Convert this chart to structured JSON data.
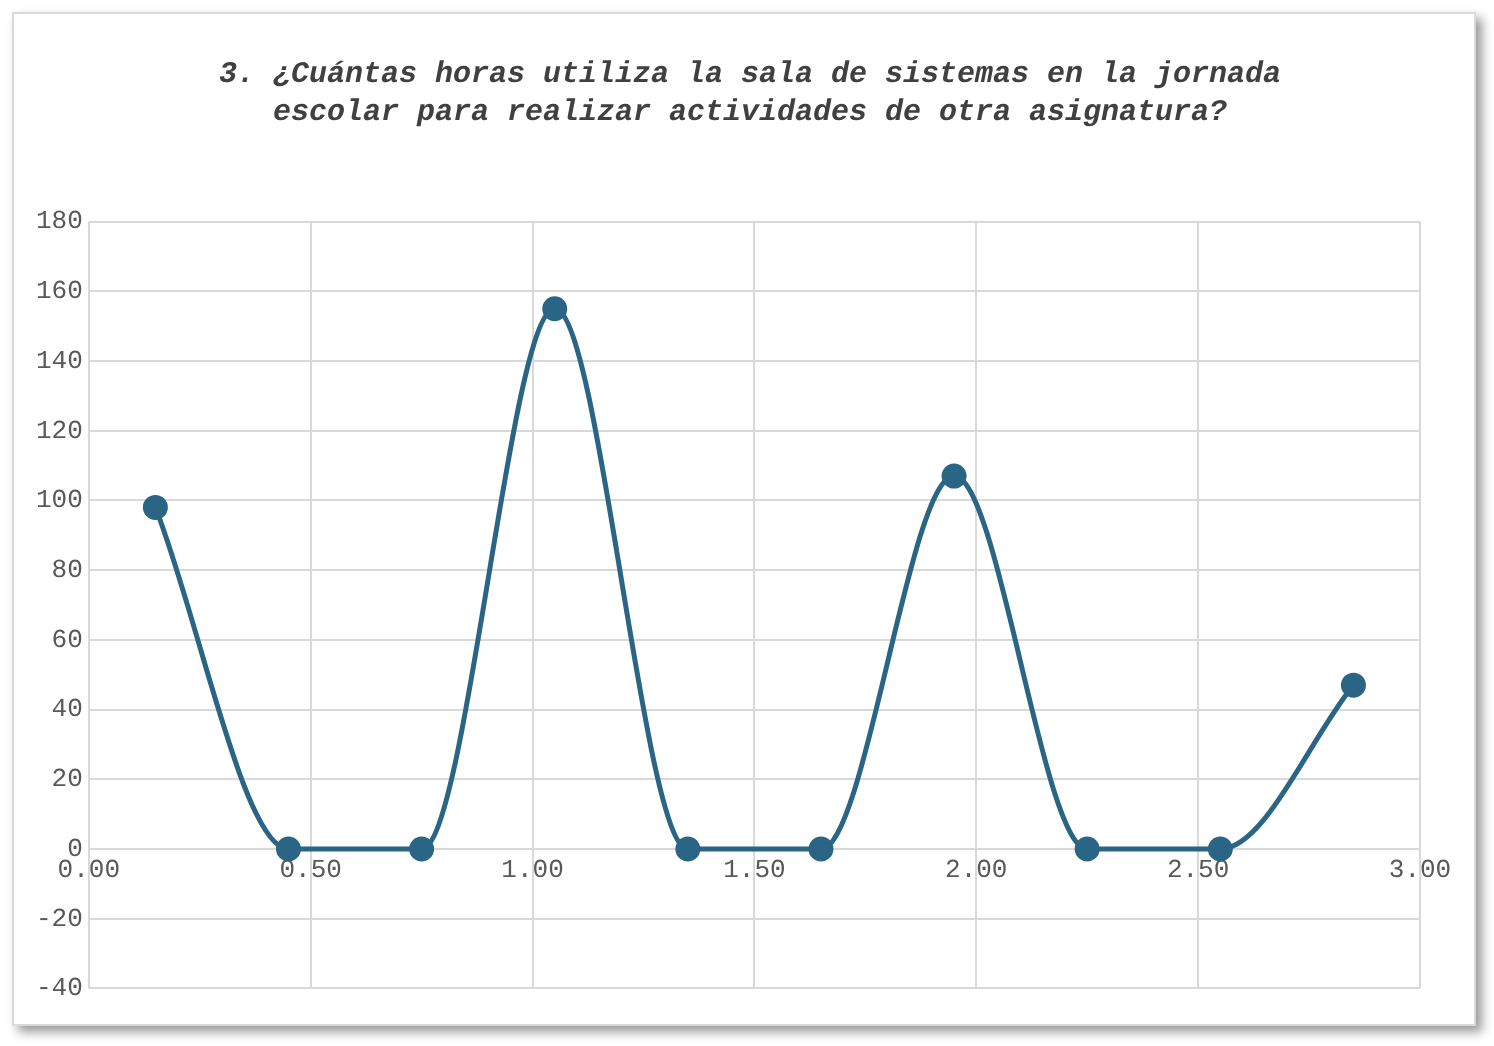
{
  "chart_data": {
    "type": "line",
    "title": "3. ¿Cuántas horas utiliza la sala de sistemas en la jornada escolar para realizar actividades de otra asignatura?",
    "x": [
      0.15,
      0.45,
      0.75,
      1.05,
      1.35,
      1.65,
      1.95,
      2.25,
      2.55,
      2.85
    ],
    "series": [
      {
        "color": "#2a6585",
        "values": [
          98,
          0,
          0,
          155,
          0,
          0,
          107,
          0,
          0,
          47
        ]
      }
    ],
    "xlim": [
      0,
      3
    ],
    "xticks": [
      {
        "value": 0,
        "label": "0.00"
      },
      {
        "value": 0.5,
        "label": "0.50"
      },
      {
        "value": 1,
        "label": "1.00"
      },
      {
        "value": 1.5,
        "label": "1.50"
      },
      {
        "value": 2,
        "label": "2.00"
      },
      {
        "value": 2.5,
        "label": "2.50"
      },
      {
        "value": 3,
        "label": "3.00"
      }
    ],
    "ylim": [
      -40,
      180
    ],
    "yticks": [
      -40,
      -20,
      0,
      20,
      40,
      60,
      80,
      100,
      120,
      140,
      160,
      180
    ],
    "grid": true,
    "legend": false,
    "marker": "circle",
    "line_style": "solid"
  }
}
